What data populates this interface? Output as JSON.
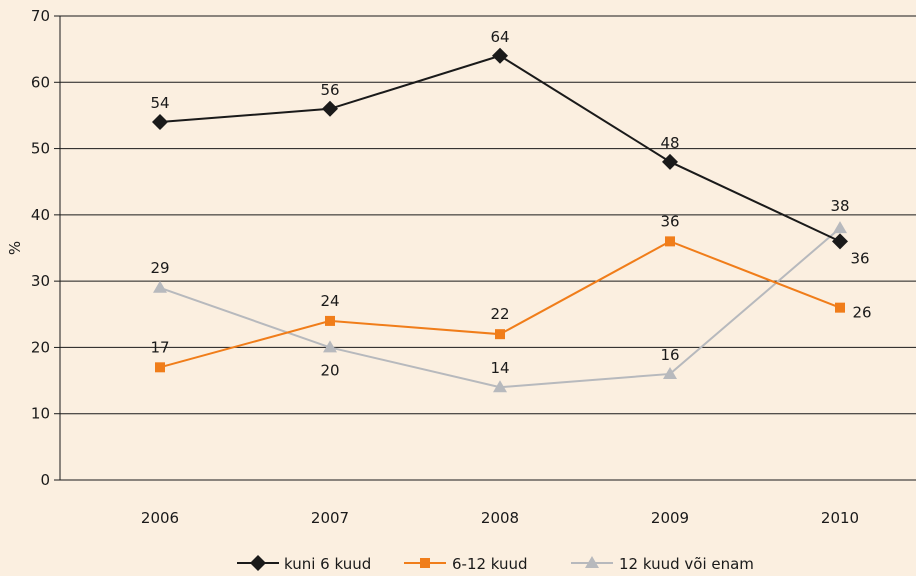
{
  "chart_data": {
    "type": "line",
    "title": "",
    "xlabel": "",
    "ylabel": "%",
    "x": [
      "2006",
      "2007",
      "2008",
      "2009",
      "2010"
    ],
    "ylim": [
      0,
      70
    ],
    "yticks": [
      0,
      10,
      20,
      30,
      40,
      50,
      60,
      70
    ],
    "grid": "horizontal",
    "legend_position": "bottom",
    "series": [
      {
        "name": "kuni 6 kuud",
        "marker": "diamond",
        "color": "#1a1a1a",
        "values": [
          54,
          56,
          64,
          48,
          36
        ],
        "labels": [
          "54",
          "56",
          "64",
          "48",
          "36"
        ]
      },
      {
        "name": "6-12 kuud",
        "marker": "square",
        "color": "#f07d1a",
        "values": [
          17,
          24,
          22,
          36,
          26
        ],
        "labels": [
          "17",
          "24",
          "22",
          "36",
          "26"
        ]
      },
      {
        "name": "12 kuud või enam",
        "marker": "triangle",
        "color": "#b7b9bd",
        "values": [
          29,
          20,
          14,
          16,
          38
        ],
        "labels": [
          "29",
          "20",
          "14",
          "16",
          "38"
        ]
      }
    ]
  }
}
